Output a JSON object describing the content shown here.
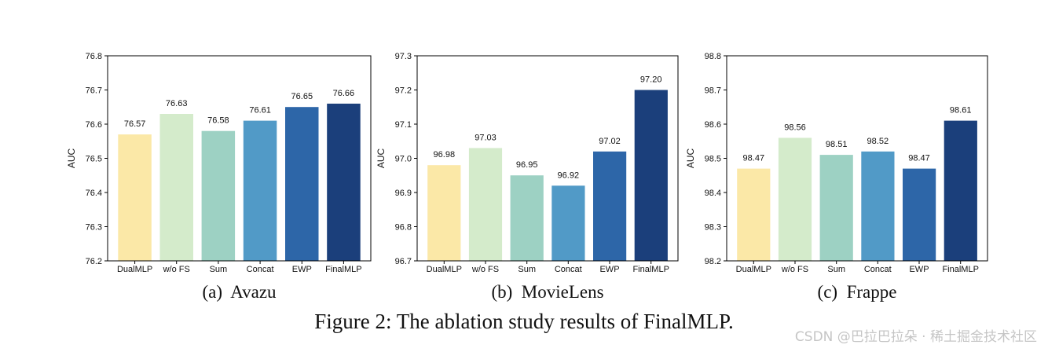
{
  "figure": {
    "caption": "Figure 2: The ablation study results of FinalMLP.",
    "watermark": "CSDN @巴拉巴拉朵 · 稀土掘金技术社区"
  },
  "chart_data": [
    {
      "type": "bar",
      "title": "(a)  Avazu",
      "ylabel": "AUC",
      "categories": [
        "DualMLP",
        "w/o FS",
        "Sum",
        "Concat",
        "EWP",
        "FinalMLP"
      ],
      "values": [
        76.57,
        76.63,
        76.58,
        76.61,
        76.65,
        76.66
      ],
      "value_labels": [
        "76.57",
        "76.63",
        "76.58",
        "76.61",
        "76.65",
        "76.66"
      ],
      "ylim": [
        76.2,
        76.8
      ],
      "yticks": [
        "76.2",
        "76.3",
        "76.4",
        "76.5",
        "76.6",
        "76.7",
        "76.8"
      ],
      "grid": false,
      "legend": "none"
    },
    {
      "type": "bar",
      "title": "(b)  MovieLens",
      "ylabel": "AUC",
      "categories": [
        "DualMLP",
        "w/o FS",
        "Sum",
        "Concat",
        "EWP",
        "FinalMLP"
      ],
      "values": [
        96.98,
        97.03,
        96.95,
        96.92,
        97.02,
        97.2
      ],
      "value_labels": [
        "96.98",
        "97.03",
        "96.95",
        "96.92",
        "97.02",
        "97.20"
      ],
      "ylim": [
        96.7,
        97.3
      ],
      "yticks": [
        "96.7",
        "96.8",
        "96.9",
        "97.0",
        "97.1",
        "97.2",
        "97.3"
      ],
      "grid": false,
      "legend": "none"
    },
    {
      "type": "bar",
      "title": "(c)  Frappe",
      "ylabel": "AUC",
      "categories": [
        "DualMLP",
        "w/o FS",
        "Sum",
        "Concat",
        "EWP",
        "FinalMLP"
      ],
      "values": [
        98.47,
        98.56,
        98.51,
        98.52,
        98.47,
        98.61
      ],
      "value_labels": [
        "98.47",
        "98.56",
        "98.51",
        "98.52",
        "98.47",
        "98.61"
      ],
      "ylim": [
        98.2,
        98.8
      ],
      "yticks": [
        "98.2",
        "98.3",
        "98.4",
        "98.5",
        "98.6",
        "98.7",
        "98.8"
      ],
      "grid": false,
      "legend": "none"
    }
  ],
  "colors": {
    "bars": [
      "#fbe8a7",
      "#d4ebcb",
      "#9dd1c3",
      "#519ac7",
      "#2d66a8",
      "#1b3f7b"
    ],
    "axis": "#000000"
  }
}
